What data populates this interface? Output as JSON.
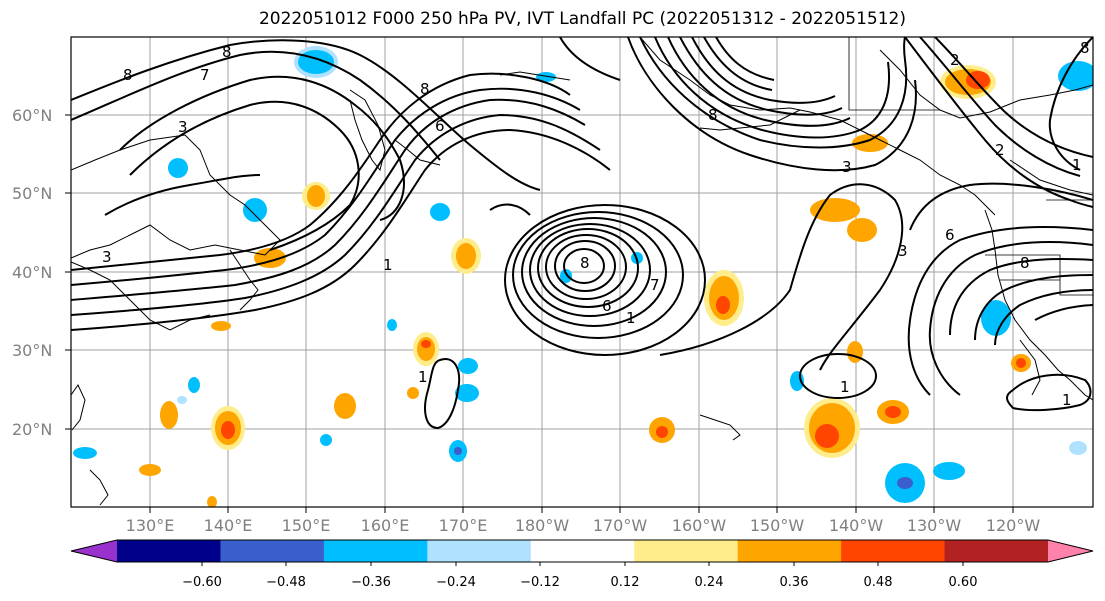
{
  "title": "2022051012 F000 250 hPa PV, IVT Landfall PC (2022051312 - 2022051512)",
  "lat_labels": [
    "60°N",
    "50°N",
    "40°N",
    "30°N",
    "20°N"
  ],
  "lon_labels": [
    "130°E",
    "140°E",
    "150°E",
    "160°E",
    "170°E",
    "180°W",
    "170°W",
    "160°W",
    "150°W",
    "140°W",
    "130°W",
    "120°W"
  ],
  "colorbar": {
    "ticks": [
      "−0.60",
      "−0.48",
      "−0.36",
      "−0.24",
      "−0.12",
      "0.12",
      "0.24",
      "0.36",
      "0.48",
      "0.60"
    ],
    "colors": [
      "#9932cc",
      "#00008b",
      "#3a5fcd",
      "#00bfff",
      "#b0e2ff",
      "#ffffff",
      "#ffec8b",
      "#ffa500",
      "#ff4500",
      "#b22222",
      "#ff82ab"
    ]
  },
  "contour_labels": [
    "1",
    "2",
    "3",
    "6",
    "7",
    "8"
  ],
  "colors": {
    "grid": "#a0a0a0",
    "contour": "#000000",
    "tick_text": "#808080"
  }
}
